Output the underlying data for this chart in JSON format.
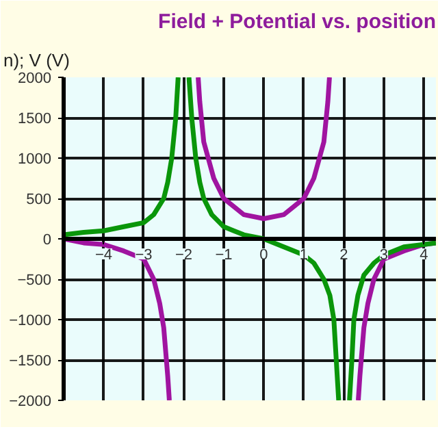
{
  "chart_data": {
    "type": "line",
    "title": "Field + Potential vs. position",
    "ylabel": "n); V (V)",
    "xlim": [
      -5,
      4.3
    ],
    "ylim": [
      -2000,
      2000
    ],
    "xticks": [
      -4,
      -3,
      -2,
      -1,
      0,
      1,
      2,
      3,
      4
    ],
    "yticks": [
      -2000,
      -1500,
      -1000,
      -500,
      0,
      500,
      1000,
      1500,
      2000
    ],
    "grid": true,
    "marker": "none",
    "line_style": "solid",
    "series": [
      {
        "color": "#0a960a",
        "x": [
          -5,
          -4.5,
          -4,
          -3.5,
          -3,
          -2.75,
          -2.5,
          -2.4,
          -2.3,
          -2.2,
          -2.14,
          null,
          -1.87,
          -1.8,
          -1.7,
          -1.6,
          -1.5,
          -1.3,
          -1,
          -0.75,
          -0.5,
          0,
          0.5,
          1,
          1.25,
          1.5,
          1.65,
          1.75,
          1.87,
          null,
          2.14,
          2.2,
          2.25,
          2.35,
          2.5,
          2.75,
          3,
          3.5,
          4,
          4.3
        ],
        "values": [
          50,
          80,
          100,
          150,
          200,
          300,
          500,
          700,
          1000,
          1500,
          2000,
          null,
          2000,
          1500,
          1000,
          700,
          500,
          300,
          150,
          100,
          50,
          0,
          -100,
          -200,
          -300,
          -500,
          -700,
          -1000,
          -2000,
          null,
          -2000,
          -1500,
          -1000,
          -700,
          -450,
          -300,
          -200,
          -100,
          -70,
          -50
        ]
      },
      {
        "color": "#a014a0",
        "x": [
          -5,
          -4.5,
          -4,
          -3.5,
          -3,
          -2.75,
          -2.6,
          -2.5,
          -2.45,
          -2.4,
          -2.36,
          null,
          -1.64,
          -1.6,
          -1.5,
          -1.25,
          -1,
          -0.5,
          0,
          0.5,
          1,
          1.25,
          1.5,
          1.6,
          1.64,
          null,
          2.36,
          2.4,
          2.45,
          2.5,
          2.6,
          2.75,
          3,
          3.5,
          4,
          4.3
        ],
        "values": [
          0,
          -50,
          -70,
          -150,
          -250,
          -500,
          -800,
          -1100,
          -1400,
          -1700,
          -2000,
          null,
          2000,
          1700,
          1200,
          750,
          500,
          300,
          250,
          300,
          500,
          750,
          1200,
          1700,
          2000,
          null,
          -2000,
          -1700,
          -1400,
          -1100,
          -800,
          -500,
          -250,
          -150,
          -70,
          -50
        ]
      }
    ]
  }
}
